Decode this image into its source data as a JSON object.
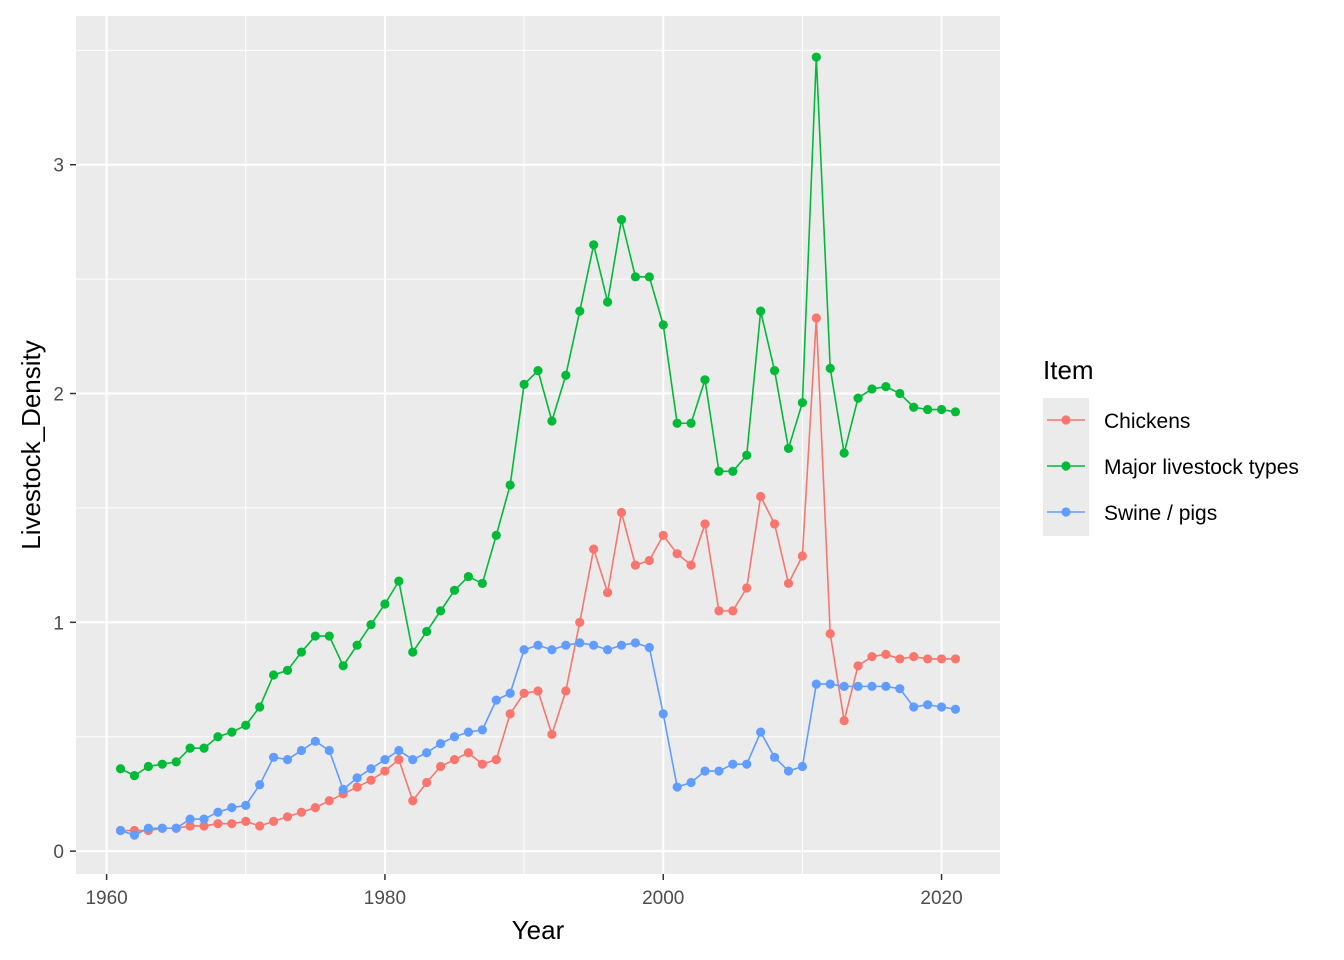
{
  "chart_data": {
    "type": "line",
    "xlabel": "Year",
    "ylabel": "Livestock_Density",
    "xlim": [
      1957.8,
      2024.2
    ],
    "ylim": [
      -0.1,
      3.65
    ],
    "x_ticks": [
      1960,
      1980,
      2000,
      2020
    ],
    "y_ticks": [
      0,
      1,
      2,
      3
    ],
    "grid": true,
    "legend": {
      "title": "Item",
      "position": "right"
    },
    "x": [
      1961,
      1962,
      1963,
      1964,
      1965,
      1966,
      1967,
      1968,
      1969,
      1970,
      1971,
      1972,
      1973,
      1974,
      1975,
      1976,
      1977,
      1978,
      1979,
      1980,
      1981,
      1982,
      1983,
      1984,
      1985,
      1986,
      1987,
      1988,
      1989,
      1990,
      1991,
      1992,
      1993,
      1994,
      1995,
      1996,
      1997,
      1998,
      1999,
      2000,
      2001,
      2002,
      2003,
      2004,
      2005,
      2006,
      2007,
      2008,
      2009,
      2010,
      2011,
      2012,
      2013,
      2014,
      2015,
      2016,
      2017,
      2018,
      2019,
      2020,
      2021
    ],
    "series": [
      {
        "name": "Chickens",
        "color": "#F8766D",
        "values": [
          0.09,
          0.09,
          0.09,
          0.1,
          0.1,
          0.11,
          0.11,
          0.12,
          0.12,
          0.13,
          0.11,
          0.13,
          0.15,
          0.17,
          0.19,
          0.22,
          0.25,
          0.28,
          0.31,
          0.35,
          0.4,
          0.22,
          0.3,
          0.37,
          0.4,
          0.43,
          0.38,
          0.4,
          0.6,
          0.69,
          0.7,
          0.51,
          0.7,
          1.0,
          1.32,
          1.13,
          1.48,
          1.25,
          1.27,
          1.38,
          1.3,
          1.25,
          1.43,
          1.05,
          1.05,
          1.15,
          1.55,
          1.43,
          1.17,
          1.29,
          2.33,
          0.95,
          0.57,
          0.81,
          0.85,
          0.86,
          0.84,
          0.85,
          0.84,
          0.84,
          0.84
        ]
      },
      {
        "name": "Major livestock types",
        "color": "#00BA38",
        "values": [
          0.36,
          0.33,
          0.37,
          0.38,
          0.39,
          0.45,
          0.45,
          0.5,
          0.52,
          0.55,
          0.63,
          0.77,
          0.79,
          0.87,
          0.94,
          0.94,
          0.81,
          0.9,
          0.99,
          1.08,
          1.18,
          0.87,
          0.96,
          1.05,
          1.14,
          1.2,
          1.17,
          1.38,
          1.6,
          2.04,
          2.1,
          1.88,
          2.08,
          2.36,
          2.65,
          2.4,
          2.76,
          2.51,
          2.51,
          2.3,
          1.87,
          1.87,
          2.06,
          1.66,
          1.66,
          1.73,
          2.36,
          2.1,
          1.76,
          1.96,
          3.47,
          2.11,
          1.74,
          1.98,
          2.02,
          2.03,
          2.0,
          1.94,
          1.93,
          1.93,
          1.92
        ]
      },
      {
        "name": "Swine / pigs",
        "color": "#619CFF",
        "values": [
          0.09,
          0.07,
          0.1,
          0.1,
          0.1,
          0.14,
          0.14,
          0.17,
          0.19,
          0.2,
          0.29,
          0.41,
          0.4,
          0.44,
          0.48,
          0.44,
          0.27,
          0.32,
          0.36,
          0.4,
          0.44,
          0.4,
          0.43,
          0.47,
          0.5,
          0.52,
          0.53,
          0.66,
          0.69,
          0.88,
          0.9,
          0.88,
          0.9,
          0.91,
          0.9,
          0.88,
          0.9,
          0.91,
          0.89,
          0.6,
          0.28,
          0.3,
          0.35,
          0.35,
          0.38,
          0.38,
          0.52,
          0.41,
          0.35,
          0.37,
          0.73,
          0.73,
          0.72,
          0.72,
          0.72,
          0.72,
          0.71,
          0.63,
          0.64,
          0.63,
          0.62
        ]
      }
    ]
  }
}
